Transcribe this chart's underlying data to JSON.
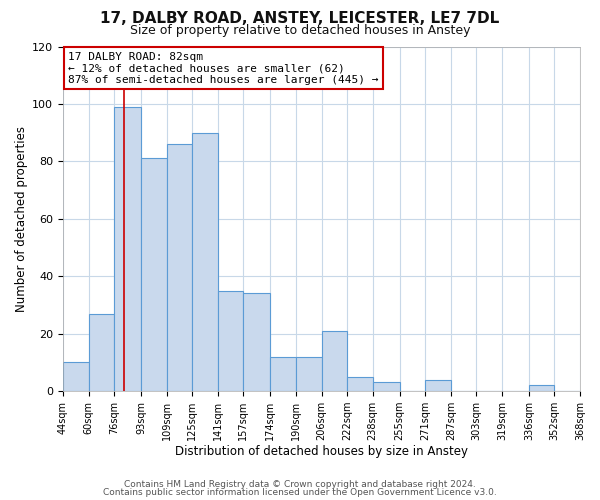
{
  "title1": "17, DALBY ROAD, ANSTEY, LEICESTER, LE7 7DL",
  "title2": "Size of property relative to detached houses in Anstey",
  "xlabel": "Distribution of detached houses by size in Anstey",
  "ylabel": "Number of detached properties",
  "bar_edges": [
    44,
    60,
    76,
    93,
    109,
    125,
    141,
    157,
    174,
    190,
    206,
    222,
    238,
    255,
    271,
    287,
    303,
    319,
    336,
    352,
    368
  ],
  "bar_heights": [
    10,
    27,
    99,
    81,
    86,
    90,
    35,
    34,
    12,
    12,
    21,
    5,
    3,
    0,
    4,
    0,
    0,
    0,
    2,
    0
  ],
  "tick_labels": [
    "44sqm",
    "60sqm",
    "76sqm",
    "93sqm",
    "109sqm",
    "125sqm",
    "141sqm",
    "157sqm",
    "174sqm",
    "190sqm",
    "206sqm",
    "222sqm",
    "238sqm",
    "255sqm",
    "271sqm",
    "287sqm",
    "303sqm",
    "319sqm",
    "336sqm",
    "352sqm",
    "368sqm"
  ],
  "property_line_x": 82,
  "bar_fill_color": "#c9d9ed",
  "bar_edge_color": "#5b9bd5",
  "vline_color": "#cc0000",
  "annotation_title": "17 DALBY ROAD: 82sqm",
  "annotation_line1": "← 12% of detached houses are smaller (62)",
  "annotation_line2": "87% of semi-detached houses are larger (445) →",
  "annotation_box_color": "#ffffff",
  "annotation_box_edge": "#cc0000",
  "ylim": [
    0,
    120
  ],
  "yticks": [
    0,
    20,
    40,
    60,
    80,
    100,
    120
  ],
  "footer1": "Contains HM Land Registry data © Crown copyright and database right 2024.",
  "footer2": "Contains public sector information licensed under the Open Government Licence v3.0.",
  "bg_color": "#ffffff",
  "grid_color": "#c8d8e8",
  "title1_fontsize": 11,
  "title2_fontsize": 9,
  "annot_fontsize": 8,
  "tick_fontsize": 7,
  "axis_label_fontsize": 8.5,
  "footer_fontsize": 6.5
}
